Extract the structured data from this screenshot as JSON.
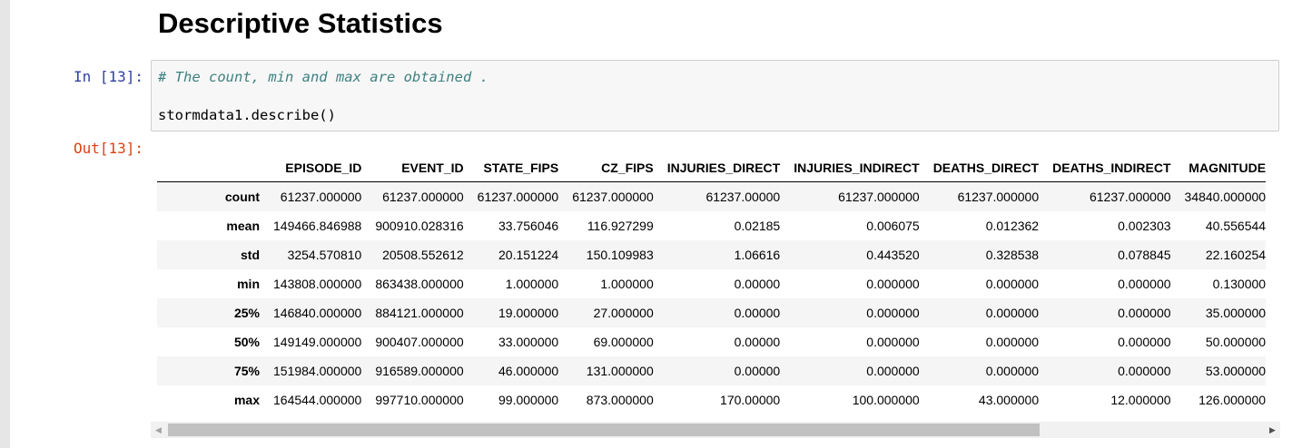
{
  "heading": "Descriptive Statistics",
  "input_prompt": "In [13]:",
  "output_prompt": "Out[13]:",
  "code": {
    "comment": "# The count, min and max are obtained .",
    "statement": "stormdata1.describe()"
  },
  "table": {
    "columns": [
      "EPISODE_ID",
      "EVENT_ID",
      "STATE_FIPS",
      "CZ_FIPS",
      "INJURIES_DIRECT",
      "INJURIES_INDIRECT",
      "DEATHS_DIRECT",
      "DEATHS_INDIRECT",
      "MAGNITUDE"
    ],
    "rows": [
      {
        "label": "count",
        "values": [
          "61237.000000",
          "61237.000000",
          "61237.000000",
          "61237.000000",
          "61237.00000",
          "61237.000000",
          "61237.000000",
          "61237.000000",
          "34840.000000"
        ]
      },
      {
        "label": "mean",
        "values": [
          "149466.846988",
          "900910.028316",
          "33.756046",
          "116.927299",
          "0.02185",
          "0.006075",
          "0.012362",
          "0.002303",
          "40.556544"
        ]
      },
      {
        "label": "std",
        "values": [
          "3254.570810",
          "20508.552612",
          "20.151224",
          "150.109983",
          "1.06616",
          "0.443520",
          "0.328538",
          "0.078845",
          "22.160254"
        ]
      },
      {
        "label": "min",
        "values": [
          "143808.000000",
          "863438.000000",
          "1.000000",
          "1.000000",
          "0.00000",
          "0.000000",
          "0.000000",
          "0.000000",
          "0.130000"
        ]
      },
      {
        "label": "25%",
        "values": [
          "146840.000000",
          "884121.000000",
          "19.000000",
          "27.000000",
          "0.00000",
          "0.000000",
          "0.000000",
          "0.000000",
          "35.000000"
        ]
      },
      {
        "label": "50%",
        "values": [
          "149149.000000",
          "900407.000000",
          "33.000000",
          "69.000000",
          "0.00000",
          "0.000000",
          "0.000000",
          "0.000000",
          "50.000000"
        ]
      },
      {
        "label": "75%",
        "values": [
          "151984.000000",
          "916589.000000",
          "46.000000",
          "131.000000",
          "0.00000",
          "0.000000",
          "0.000000",
          "0.000000",
          "53.000000"
        ]
      },
      {
        "label": "max",
        "values": [
          "164544.000000",
          "997710.000000",
          "99.000000",
          "873.000000",
          "170.00000",
          "100.000000",
          "43.000000",
          "12.000000",
          "126.000000"
        ]
      }
    ]
  },
  "scrollbar": {
    "left_icon": "arrow-left-icon",
    "right_icon": "arrow-right-icon",
    "left_glyph": "◀",
    "right_glyph": "▶"
  }
}
